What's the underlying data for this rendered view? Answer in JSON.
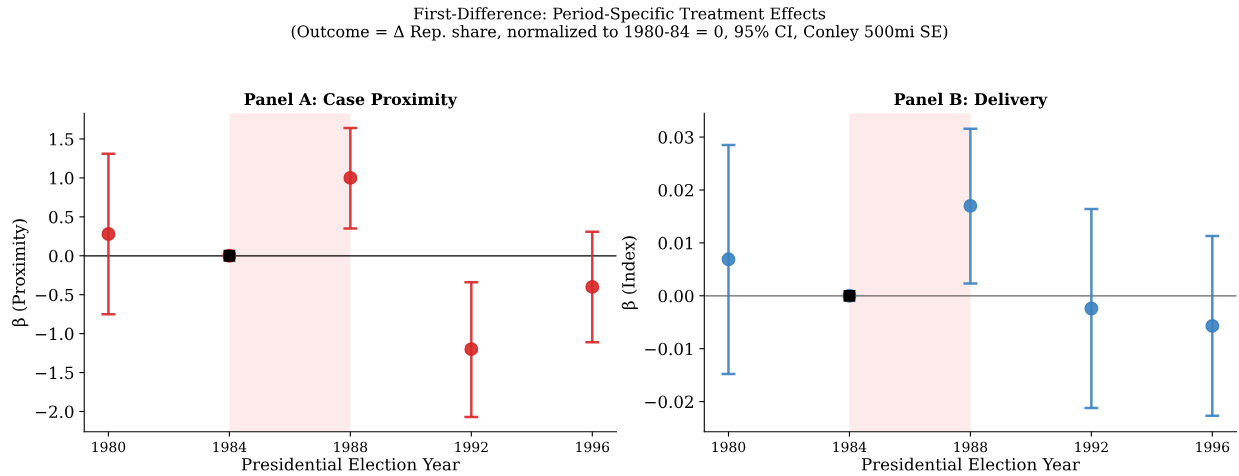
{
  "chart_data": [
    {
      "type": "scatter",
      "title": "Panel A: Case Proximity",
      "xlabel": "Presidential Election Year",
      "ylabel": "β (Proximity)",
      "annotations": [
        "First-Difference: Period-Specific Treatment Effects\n(Outcome = Δ Rep. share, normalized to 1980-84 = 0, 95% CI, Conley 500mi SE)"
      ],
      "x": [
        1980,
        1984,
        1988,
        1992,
        1996
      ],
      "series": [
        {
          "color": "#d62728",
          "marker": "circle",
          "values": [
            0.28,
            0,
            1.0,
            -1.2,
            -0.4
          ],
          "errors": [
            [
              -0.75,
              1.31
            ],
            null,
            [
              0.35,
              1.64
            ],
            [
              -2.07,
              -0.34
            ],
            [
              -1.11,
              0.31
            ]
          ]
        },
        {
          "color": "#000000",
          "marker": "square",
          "x": [
            1984
          ],
          "values": [
            0
          ]
        }
      ],
      "xlim": [
        1979.2,
        1996.8
      ],
      "xticks": [
        1980,
        1984,
        1988,
        1992,
        1996
      ],
      "ylim": [
        -2.26,
        1.83
      ],
      "yticks": [
        {
          "value": -2.0,
          "label": "−2.0"
        },
        {
          "value": -1.5,
          "label": "−1.5"
        },
        {
          "value": -1.0,
          "label": "−1.0"
        },
        {
          "value": -0.5,
          "label": "−0.5"
        },
        {
          "value": 0.0,
          "label": "0.0"
        },
        {
          "value": 0.5,
          "label": "0.5"
        },
        {
          "value": 1.0,
          "label": "1.0"
        },
        {
          "value": 1.5,
          "label": "1.5"
        }
      ],
      "ref_lines": [
        {
          "axis": "y",
          "value": 0,
          "color": "#000000"
        }
      ],
      "bands": [
        {
          "axis": "x",
          "from": 1984,
          "to": 1988,
          "color": "#fdeaea"
        }
      ],
      "grid": false,
      "legend": false
    },
    {
      "type": "scatter",
      "title": "Panel B: Delivery",
      "xlabel": "Presidential Election Year",
      "ylabel": "β (Index)",
      "x": [
        1980,
        1984,
        1988,
        1992,
        1996
      ],
      "series": [
        {
          "color": "#3a82c0",
          "marker": "circle",
          "values": [
            0.0069,
            0,
            0.017,
            -0.0024,
            -0.0057
          ],
          "errors": [
            [
              -0.0148,
              0.0285
            ],
            null,
            [
              0.0023,
              0.0316
            ],
            [
              -0.0212,
              0.0164
            ],
            [
              -0.0227,
              0.0113
            ]
          ]
        },
        {
          "color": "#000000",
          "marker": "square",
          "x": [
            1984
          ],
          "values": [
            0
          ]
        }
      ],
      "xlim": [
        1979.2,
        1996.8
      ],
      "xticks": [
        1980,
        1984,
        1988,
        1992,
        1996
      ],
      "ylim": [
        -0.0257,
        0.0345
      ],
      "yticks": [
        {
          "value": -0.02,
          "label": "−0.02"
        },
        {
          "value": -0.01,
          "label": "−0.01"
        },
        {
          "value": 0.0,
          "label": "0.00"
        },
        {
          "value": 0.01,
          "label": "0.01"
        },
        {
          "value": 0.02,
          "label": "0.02"
        },
        {
          "value": 0.03,
          "label": "0.03"
        }
      ],
      "ref_lines": [
        {
          "axis": "y",
          "value": 0,
          "color": "#666666"
        }
      ],
      "bands": [
        {
          "axis": "x",
          "from": 1984,
          "to": 1988,
          "color": "#fdeaea"
        }
      ],
      "grid": false,
      "legend": false
    }
  ]
}
